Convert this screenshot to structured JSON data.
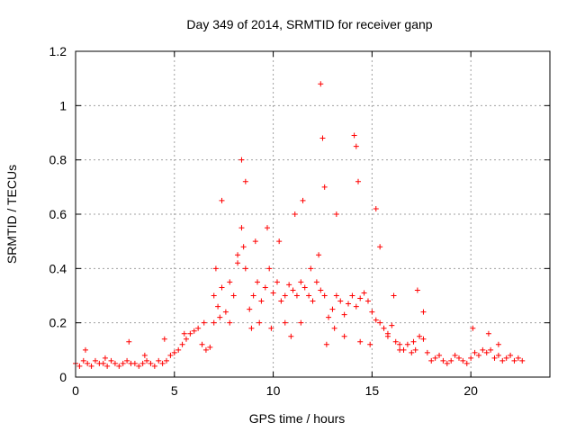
{
  "chart_data": {
    "type": "scatter",
    "title": "Day 349 of 2014, SRMTID for receiver ganp",
    "xlabel": "GPS time / hours",
    "ylabel": "SRMTID / TECUs",
    "xlim": [
      0,
      24
    ],
    "ylim": [
      0,
      1.2
    ],
    "xticks": [
      0,
      5,
      10,
      15,
      20
    ],
    "yticks": [
      0,
      0.2,
      0.4,
      0.6,
      0.8,
      1.0,
      1.2
    ],
    "xtick_labels": [
      "0",
      "5",
      "10",
      "15",
      "20"
    ],
    "ytick_labels": [
      "0",
      "0.2",
      "0.4",
      "0.6",
      "0.8",
      "1",
      "1.2"
    ],
    "grid": true,
    "marker": "+",
    "marker_color": "#ff0000",
    "series": [
      {
        "name": "SRMTID",
        "x": [
          0.0,
          0.2,
          0.4,
          0.6,
          0.8,
          1.0,
          1.2,
          1.4,
          1.6,
          1.8,
          2.0,
          2.2,
          2.4,
          2.6,
          2.8,
          3.0,
          3.2,
          3.4,
          3.6,
          3.8,
          4.0,
          4.2,
          4.4,
          4.6,
          4.8,
          5.0,
          5.2,
          5.4,
          5.6,
          5.8,
          6.0,
          6.2,
          6.4,
          6.6,
          6.8,
          7.0,
          7.2,
          7.4,
          7.6,
          7.8,
          8.0,
          8.2,
          8.4,
          8.6,
          8.8,
          9.0,
          9.2,
          9.4,
          9.6,
          9.8,
          10.0,
          10.2,
          10.4,
          10.6,
          10.8,
          11.0,
          11.2,
          11.4,
          11.6,
          11.8,
          12.0,
          12.2,
          12.4,
          12.6,
          12.8,
          13.0,
          13.2,
          13.4,
          13.6,
          13.8,
          14.0,
          14.2,
          14.4,
          14.6,
          14.8,
          15.0,
          15.2,
          15.4,
          15.6,
          15.8,
          16.0,
          16.2,
          16.4,
          16.6,
          16.8,
          17.0,
          17.2,
          17.4,
          17.6,
          17.8,
          18.0,
          18.2,
          18.4,
          18.6,
          18.8,
          19.0,
          19.2,
          19.4,
          19.6,
          19.8,
          20.0,
          20.2,
          20.4,
          20.6,
          20.8,
          21.0,
          21.2,
          21.4,
          21.6,
          21.8,
          22.0,
          22.2,
          22.4,
          22.6,
          0.5,
          1.5,
          2.7,
          3.5,
          4.5,
          5.5,
          6.5,
          7.1,
          7.4,
          8.4,
          8.6,
          9.1,
          9.7,
          10.3,
          11.1,
          11.5,
          12.3,
          12.4,
          12.5,
          12.6,
          13.2,
          14.1,
          14.2,
          14.3,
          15.2,
          15.4,
          16.1,
          17.3,
          17.6,
          20.1,
          20.9,
          21.4,
          7.0,
          7.3,
          7.8,
          8.2,
          8.5,
          8.9,
          9.3,
          9.9,
          10.6,
          10.9,
          11.4,
          11.9,
          12.7,
          13.1,
          13.6,
          14.4,
          14.9,
          15.8,
          16.4,
          17.1
        ],
        "y": [
          0.05,
          0.04,
          0.06,
          0.05,
          0.04,
          0.06,
          0.05,
          0.05,
          0.04,
          0.06,
          0.05,
          0.04,
          0.05,
          0.06,
          0.05,
          0.05,
          0.04,
          0.05,
          0.06,
          0.05,
          0.04,
          0.06,
          0.05,
          0.06,
          0.08,
          0.09,
          0.1,
          0.12,
          0.14,
          0.16,
          0.17,
          0.18,
          0.12,
          0.1,
          0.11,
          0.3,
          0.26,
          0.33,
          0.24,
          0.35,
          0.3,
          0.45,
          0.55,
          0.4,
          0.25,
          0.3,
          0.35,
          0.28,
          0.33,
          0.4,
          0.31,
          0.35,
          0.28,
          0.3,
          0.34,
          0.32,
          0.3,
          0.35,
          0.33,
          0.3,
          0.28,
          0.35,
          0.32,
          0.3,
          0.22,
          0.25,
          0.3,
          0.28,
          0.23,
          0.27,
          0.3,
          0.26,
          0.29,
          0.31,
          0.28,
          0.24,
          0.21,
          0.2,
          0.18,
          0.16,
          0.19,
          0.13,
          0.12,
          0.1,
          0.12,
          0.09,
          0.1,
          0.15,
          0.14,
          0.09,
          0.06,
          0.07,
          0.08,
          0.06,
          0.05,
          0.06,
          0.08,
          0.07,
          0.06,
          0.05,
          0.07,
          0.09,
          0.08,
          0.1,
          0.09,
          0.1,
          0.07,
          0.08,
          0.06,
          0.07,
          0.08,
          0.06,
          0.07,
          0.06,
          0.1,
          0.07,
          0.13,
          0.08,
          0.14,
          0.16,
          0.2,
          0.4,
          0.65,
          0.8,
          0.72,
          0.5,
          0.55,
          0.5,
          0.6,
          0.65,
          0.45,
          1.08,
          0.88,
          0.7,
          0.6,
          0.89,
          0.85,
          0.72,
          0.62,
          0.48,
          0.3,
          0.32,
          0.24,
          0.18,
          0.16,
          0.12,
          0.2,
          0.22,
          0.2,
          0.42,
          0.48,
          0.18,
          0.2,
          0.18,
          0.2,
          0.15,
          0.2,
          0.4,
          0.12,
          0.18,
          0.15,
          0.13,
          0.12,
          0.15,
          0.1,
          0.13
        ]
      }
    ]
  }
}
